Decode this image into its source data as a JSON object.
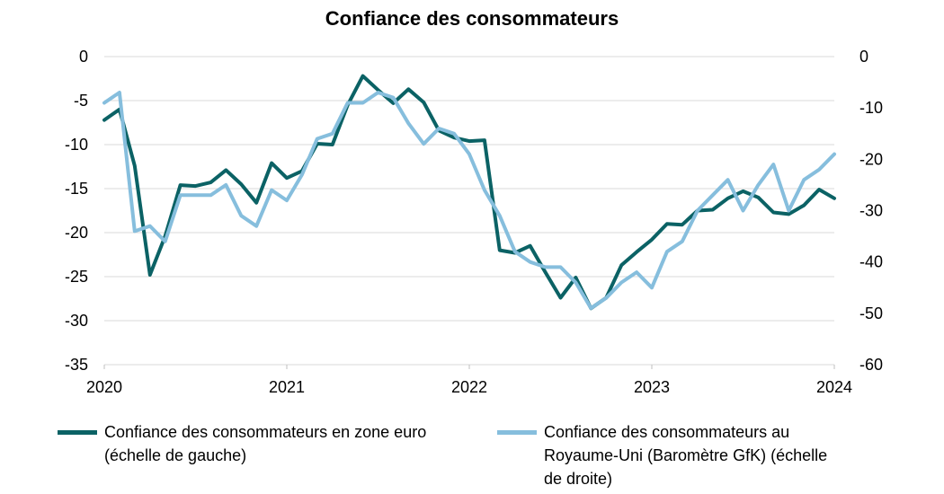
{
  "chart_data": {
    "type": "line",
    "title": "Confiance des consommateurs",
    "x_tick_labels": [
      "2020",
      "2021",
      "2022",
      "2023",
      "2024"
    ],
    "left_axis": {
      "ylim": [
        -35,
        0
      ],
      "ticks": [
        "0",
        "-5",
        "-10",
        "-15",
        "-20",
        "-25",
        "-30",
        "-35"
      ]
    },
    "right_axis": {
      "ylim": [
        -60,
        0
      ],
      "ticks": [
        "0",
        "-10",
        "-20",
        "-30",
        "-40",
        "-50",
        "-60"
      ]
    },
    "grid": true,
    "legend_position": "bottom",
    "series": [
      {
        "name": "Confiance des consommateurs en zone euro (échelle de gauche)",
        "axis": "left",
        "color": "#0b6265",
        "start": "2020-01",
        "frequency": "monthly",
        "values": [
          -7.2,
          -6.0,
          -12.4,
          -24.8,
          -20.4,
          -14.6,
          -14.7,
          -14.3,
          -12.9,
          -14.5,
          -16.6,
          -12.1,
          -13.8,
          -13.0,
          -9.9,
          -10.0,
          -5.5,
          -2.2,
          -3.8,
          -5.3,
          -3.7,
          -5.2,
          -8.4,
          -9.2,
          -9.6,
          -9.5,
          -22.0,
          -22.3,
          -21.5,
          -24.5,
          -27.4,
          -25.1,
          -28.6,
          -27.4,
          -23.7,
          -22.2,
          -20.8,
          -19.0,
          -19.1,
          -17.5,
          -17.4,
          -16.1,
          -15.3,
          -16.0,
          -17.7,
          -17.9,
          -16.9,
          -15.1,
          -16.1
        ]
      },
      {
        "name": "Confiance des consommateurs au Royaume-Uni (Baromètre GfK) (échelle de droite)",
        "axis": "right",
        "color": "#86bedd",
        "start": "2020-01",
        "frequency": "monthly",
        "values": [
          -9,
          -7,
          -34,
          -33,
          -36,
          -27,
          -27,
          -27,
          -25,
          -31,
          -33,
          -26,
          -28,
          -23,
          -16,
          -15,
          -9,
          -9,
          -7,
          -8,
          -13,
          -17,
          -14,
          -15,
          -19,
          -26,
          -31,
          -38,
          -40,
          -41,
          -41,
          -44,
          -49,
          -47,
          -44,
          -42,
          -45,
          -38,
          -36,
          -30,
          -27,
          -24,
          -30,
          -25,
          -21,
          -30,
          -24,
          -22,
          -19
        ]
      }
    ]
  }
}
